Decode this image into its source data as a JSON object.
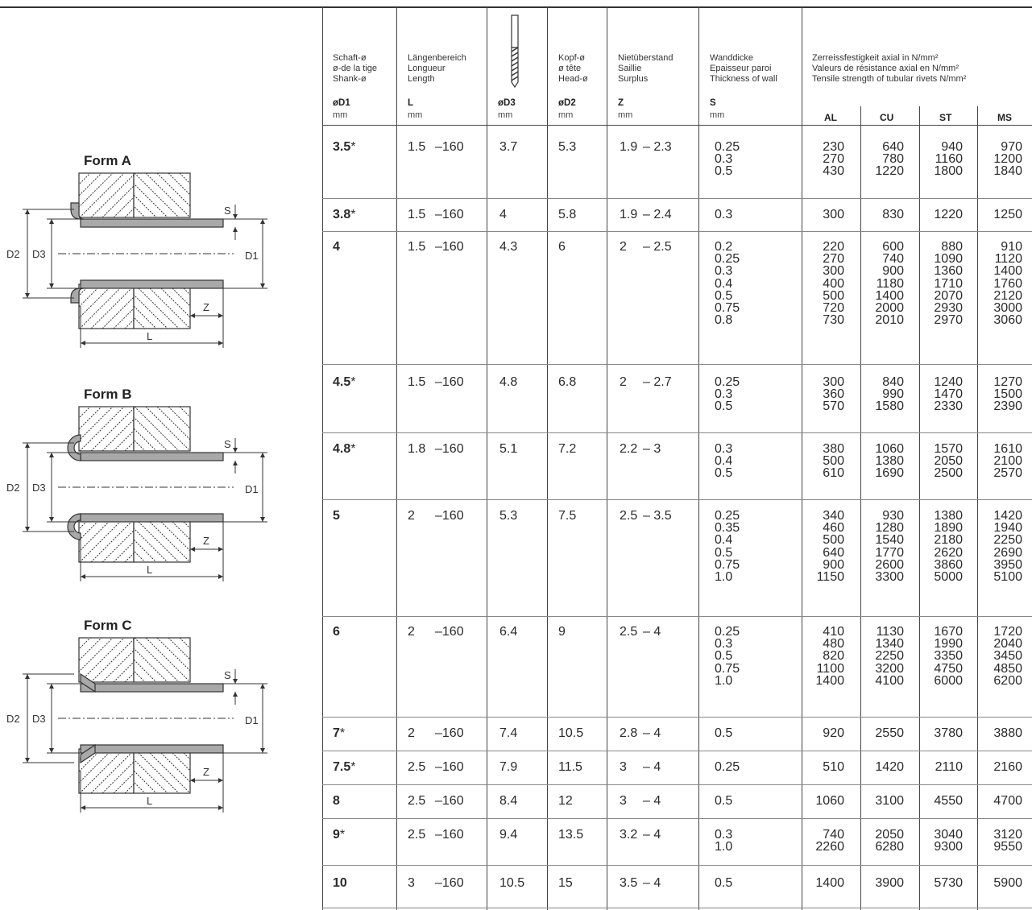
{
  "headers": {
    "d1": [
      "Schaft-ø",
      "ø-de la tige",
      "Shank-ø"
    ],
    "length": [
      "Längenbereich",
      "Longueur",
      "Length"
    ],
    "d2": [
      "Kopf-ø",
      "ø tête",
      "Head-ø"
    ],
    "z": [
      "Nietüberstand",
      "Saillie",
      "Surplus"
    ],
    "s": [
      "Wanddicke",
      "Epaisseur paroi",
      "Thickness of wall"
    ],
    "strength": [
      "Zerreissfestigkeit axial in N/mm²",
      "Valeurs de résistance axial en N/mm²",
      "Tensile strength of tubular rivets N/mm²"
    ]
  },
  "symbols": {
    "d1": "øD1",
    "length": "L",
    "d3": "øD3",
    "d2": "øD2",
    "z": "Z",
    "s": "S",
    "al": "AL",
    "cu": "CU",
    "st": "ST",
    "ms": "MS"
  },
  "unit": "mm",
  "forms": [
    "Form A",
    "Form B",
    "Form C"
  ],
  "figure_labels": {
    "d2": "D2",
    "d3": "D3",
    "d1": "D1",
    "s": "S",
    "z": "Z",
    "l": "L"
  },
  "rows": [
    {
      "d1": "3.5",
      "star": "*",
      "l_min": "1.5",
      "l_max": "–160",
      "d3": "3.7",
      "d2": "5.3",
      "z_min": "1.9",
      "z_max": "– 2.3",
      "s": [
        "0.25",
        "0.3",
        "0.5"
      ],
      "al": [
        "230",
        "270",
        "430"
      ],
      "cu": [
        "640",
        "780",
        "1220"
      ],
      "st": [
        "940",
        "1160",
        "1800"
      ],
      "ms": [
        "970",
        "1200",
        "1840"
      ]
    },
    {
      "d1": "3.8",
      "star": "*",
      "l_min": "1.5",
      "l_max": "–160",
      "d3": "4",
      "d2": "5.8",
      "z_min": "1.9",
      "z_max": "– 2.4",
      "s": [
        "0.3"
      ],
      "al": [
        "300"
      ],
      "cu": [
        "830"
      ],
      "st": [
        "1220"
      ],
      "ms": [
        "1250"
      ]
    },
    {
      "d1": "4",
      "star": "",
      "l_min": "1.5",
      "l_max": "–160",
      "d3": "4.3",
      "d2": "6",
      "z_min": "2",
      "z_max": "– 2.5",
      "s": [
        "0.2",
        "0.25",
        "0.3",
        "0.4",
        "0.5",
        "0.75",
        "0.8"
      ],
      "al": [
        "220",
        "270",
        "300",
        "400",
        "500",
        "720",
        "730"
      ],
      "cu": [
        "600",
        "740",
        "900",
        "1180",
        "1400",
        "2000",
        "2010"
      ],
      "st": [
        "880",
        "1090",
        "1360",
        "1710",
        "2070",
        "2930",
        "2970"
      ],
      "ms": [
        "910",
        "1120",
        "1400",
        "1760",
        "2120",
        "3000",
        "3060"
      ]
    },
    {
      "d1": "4.5",
      "star": "*",
      "l_min": "1.5",
      "l_max": "–160",
      "d3": "4.8",
      "d2": "6.8",
      "z_min": "2",
      "z_max": "– 2.7",
      "s": [
        "0.25",
        "0.3",
        "0.5"
      ],
      "al": [
        "300",
        "360",
        "570"
      ],
      "cu": [
        "840",
        "990",
        "1580"
      ],
      "st": [
        "1240",
        "1470",
        "2330"
      ],
      "ms": [
        "1270",
        "1500",
        "2390"
      ]
    },
    {
      "d1": "4.8",
      "star": "*",
      "l_min": "1.8",
      "l_max": "–160",
      "d3": "5.1",
      "d2": "7.2",
      "z_min": "2.2",
      "z_max": "– 3",
      "s": [
        "0.3",
        "0.4",
        "0.5"
      ],
      "al": [
        "380",
        "500",
        "610"
      ],
      "cu": [
        "1060",
        "1380",
        "1690"
      ],
      "st": [
        "1570",
        "2050",
        "2500"
      ],
      "ms": [
        "1610",
        "2100",
        "2570"
      ]
    },
    {
      "d1": "5",
      "star": "",
      "l_min": "2",
      "l_max": "–160",
      "d3": "5.3",
      "d2": "7.5",
      "z_min": "2.5",
      "z_max": "– 3.5",
      "s": [
        "0.25",
        "0.35",
        "0.4",
        "0.5",
        "0.75",
        "1.0"
      ],
      "al": [
        "340",
        "460",
        "500",
        "640",
        "900",
        "1150"
      ],
      "cu": [
        "930",
        "1280",
        "1540",
        "1770",
        "2600",
        "3300"
      ],
      "st": [
        "1380",
        "1890",
        "2180",
        "2620",
        "3860",
        "5000"
      ],
      "ms": [
        "1420",
        "1940",
        "2250",
        "2690",
        "3950",
        "5100"
      ]
    },
    {
      "d1": "6",
      "star": "",
      "l_min": "2",
      "l_max": "–160",
      "d3": "6.4",
      "d2": "9",
      "z_min": "2.5",
      "z_max": "– 4",
      "s": [
        "0.25",
        "0.3",
        "0.5",
        "0.75",
        "1.0"
      ],
      "al": [
        "410",
        "480",
        "820",
        "1100",
        "1400"
      ],
      "cu": [
        "1130",
        "1340",
        "2250",
        "3200",
        "4100"
      ],
      "st": [
        "1670",
        "1990",
        "3350",
        "4750",
        "6000"
      ],
      "ms": [
        "1720",
        "2040",
        "3450",
        "4850",
        "6200"
      ]
    },
    {
      "d1": "7",
      "star": "*",
      "l_min": "2",
      "l_max": "–160",
      "d3": "7.4",
      "d2": "10.5",
      "z_min": "2.8",
      "z_max": "– 4",
      "s": [
        "0.5"
      ],
      "al": [
        "920"
      ],
      "cu": [
        "2550"
      ],
      "st": [
        "3780"
      ],
      "ms": [
        "3880"
      ]
    },
    {
      "d1": "7.5",
      "star": "*",
      "l_min": "2.5",
      "l_max": "–160",
      "d3": "7.9",
      "d2": "11.5",
      "z_min": "3",
      "z_max": "– 4",
      "s": [
        "0.25"
      ],
      "al": [
        "510"
      ],
      "cu": [
        "1420"
      ],
      "st": [
        "2110"
      ],
      "ms": [
        "2160"
      ]
    },
    {
      "d1": "8",
      "star": "",
      "l_min": "2.5",
      "l_max": "–160",
      "d3": "8.4",
      "d2": "12",
      "z_min": "3",
      "z_max": "– 4",
      "s": [
        "0.5"
      ],
      "al": [
        "1060"
      ],
      "cu": [
        "3100"
      ],
      "st": [
        "4550"
      ],
      "ms": [
        "4700"
      ]
    },
    {
      "d1": "9",
      "star": "*",
      "l_min": "2.5",
      "l_max": "–160",
      "d3": "9.4",
      "d2": "13.5",
      "z_min": "3.2",
      "z_max": "– 4",
      "s": [
        "0.3",
        "1.0"
      ],
      "al": [
        "740",
        "2260"
      ],
      "cu": [
        "2050",
        "6280"
      ],
      "st": [
        "3040",
        "9300"
      ],
      "ms": [
        "3120",
        "9550"
      ]
    },
    {
      "d1": "10",
      "star": "",
      "l_min": "3",
      "l_max": "–160",
      "d3": "10.5",
      "d2": "15",
      "z_min": "3.5",
      "z_max": "– 4",
      "s": [
        "0.5"
      ],
      "al": [
        "1400"
      ],
      "cu": [
        "3900"
      ],
      "st": [
        "5730"
      ],
      "ms": [
        "5900"
      ]
    }
  ]
}
